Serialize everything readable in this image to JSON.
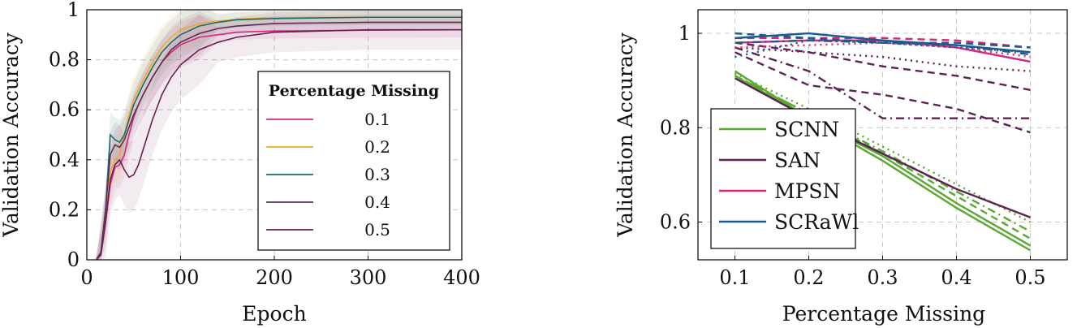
{
  "chart_data": [
    {
      "type": "line",
      "xlabel": "Epoch",
      "ylabel": "Validation Accuracy",
      "xlim": [
        0,
        400
      ],
      "ylim": [
        0,
        1
      ],
      "xticks": [
        "0",
        "100",
        "200",
        "300",
        "400"
      ],
      "yticks": [
        "0",
        "0.2",
        "0.4",
        "0.6",
        "0.8",
        "1"
      ],
      "grid": true,
      "legend_position": "bottom-right",
      "legend_title": "Percentage Missing",
      "series": [
        {
          "name": "0.1",
          "color": "#d6287a",
          "shaded_band": true,
          "points": [
            [
              10,
              0
            ],
            [
              15,
              0.03
            ],
            [
              20,
              0.15
            ],
            [
              25,
              0.3
            ],
            [
              30,
              0.37
            ],
            [
              35,
              0.38
            ],
            [
              40,
              0.42
            ],
            [
              45,
              0.5
            ],
            [
              50,
              0.57
            ],
            [
              55,
              0.62
            ],
            [
              60,
              0.66
            ],
            [
              70,
              0.73
            ],
            [
              80,
              0.79
            ],
            [
              90,
              0.83
            ],
            [
              100,
              0.86
            ],
            [
              110,
              0.875
            ],
            [
              120,
              0.89
            ],
            [
              140,
              0.9
            ],
            [
              160,
              0.91
            ],
            [
              200,
              0.915
            ],
            [
              300,
              0.918
            ],
            [
              400,
              0.92
            ]
          ]
        },
        {
          "name": "0.2",
          "color": "#f0a830",
          "shaded_band": true,
          "points": [
            [
              10,
              0
            ],
            [
              15,
              0.03
            ],
            [
              20,
              0.15
            ],
            [
              25,
              0.35
            ],
            [
              30,
              0.4
            ],
            [
              35,
              0.42
            ],
            [
              40,
              0.5
            ],
            [
              45,
              0.58
            ],
            [
              50,
              0.64
            ],
            [
              60,
              0.72
            ],
            [
              70,
              0.79
            ],
            [
              80,
              0.85
            ],
            [
              90,
              0.89
            ],
            [
              100,
              0.92
            ],
            [
              120,
              0.945
            ],
            [
              140,
              0.955
            ],
            [
              160,
              0.962
            ],
            [
              200,
              0.968
            ],
            [
              300,
              0.97
            ],
            [
              400,
              0.97
            ]
          ]
        },
        {
          "name": "0.3",
          "color": "#1a6e66",
          "shaded_band": true,
          "points": [
            [
              10,
              0
            ],
            [
              15,
              0.03
            ],
            [
              20,
              0.2
            ],
            [
              25,
              0.5
            ],
            [
              30,
              0.48
            ],
            [
              35,
              0.47
            ],
            [
              40,
              0.5
            ],
            [
              45,
              0.56
            ],
            [
              50,
              0.62
            ],
            [
              60,
              0.7
            ],
            [
              70,
              0.77
            ],
            [
              80,
              0.83
            ],
            [
              90,
              0.87
            ],
            [
              100,
              0.9
            ],
            [
              120,
              0.935
            ],
            [
              140,
              0.95
            ],
            [
              160,
              0.96
            ],
            [
              200,
              0.965
            ],
            [
              300,
              0.97
            ],
            [
              400,
              0.97
            ]
          ]
        },
        {
          "name": "0.4",
          "color": "#5a2d5f",
          "shaded_band": true,
          "points": [
            [
              10,
              0
            ],
            [
              15,
              0.03
            ],
            [
              20,
              0.2
            ],
            [
              25,
              0.42
            ],
            [
              30,
              0.46
            ],
            [
              35,
              0.45
            ],
            [
              40,
              0.48
            ],
            [
              45,
              0.53
            ],
            [
              50,
              0.58
            ],
            [
              60,
              0.66
            ],
            [
              70,
              0.73
            ],
            [
              80,
              0.79
            ],
            [
              90,
              0.84
            ],
            [
              100,
              0.87
            ],
            [
              120,
              0.905
            ],
            [
              140,
              0.925
            ],
            [
              160,
              0.935
            ],
            [
              200,
              0.945
            ],
            [
              300,
              0.95
            ],
            [
              400,
              0.95
            ]
          ]
        },
        {
          "name": "0.5",
          "color": "#6a1f52",
          "shaded_band": true,
          "points": [
            [
              10,
              0
            ],
            [
              15,
              0.02
            ],
            [
              20,
              0.15
            ],
            [
              25,
              0.32
            ],
            [
              30,
              0.38
            ],
            [
              35,
              0.4
            ],
            [
              40,
              0.36
            ],
            [
              45,
              0.33
            ],
            [
              50,
              0.34
            ],
            [
              55,
              0.38
            ],
            [
              60,
              0.44
            ],
            [
              70,
              0.56
            ],
            [
              80,
              0.66
            ],
            [
              90,
              0.73
            ],
            [
              100,
              0.78
            ],
            [
              110,
              0.81
            ],
            [
              120,
              0.84
            ],
            [
              140,
              0.87
            ],
            [
              160,
              0.89
            ],
            [
              200,
              0.91
            ],
            [
              300,
              0.92
            ],
            [
              400,
              0.92
            ]
          ]
        }
      ]
    },
    {
      "type": "line",
      "xlabel": "Percentage Missing",
      "ylabel": "Validation Accuracy",
      "xlim": [
        0.05,
        0.55
      ],
      "ylim": [
        0.52,
        1.05
      ],
      "xticks": [
        "0.1",
        "0.2",
        "0.3",
        "0.4",
        "0.5"
      ],
      "yticks": [
        "0.6",
        "0.8",
        "1"
      ],
      "grid": true,
      "legend_position": "bottom-left",
      "legend": [
        {
          "name": "SCNN",
          "color": "#5aa832"
        },
        {
          "name": "SAN",
          "color": "#5a2352"
        },
        {
          "name": "MPSN",
          "color": "#d6287a"
        },
        {
          "name": "SCRaWl",
          "color": "#1b5a8e"
        }
      ],
      "series": [
        {
          "model": "SCNN",
          "style": "solid",
          "color": "#5aa832",
          "x": [
            0.1,
            0.2,
            0.3,
            0.4,
            0.5
          ],
          "y": [
            0.92,
            0.82,
            0.73,
            0.63,
            0.54
          ]
        },
        {
          "model": "SCNN",
          "style": "solid",
          "color": "#5aa832",
          "x": [
            0.1,
            0.2,
            0.3,
            0.4,
            0.5
          ],
          "y": [
            0.91,
            0.82,
            0.74,
            0.64,
            0.55
          ]
        },
        {
          "model": "SCNN",
          "style": "dashed",
          "color": "#5aa832",
          "x": [
            0.1,
            0.2,
            0.3,
            0.4,
            0.5
          ],
          "y": [
            0.91,
            0.83,
            0.745,
            0.655,
            0.565
          ]
        },
        {
          "model": "SCNN",
          "style": "dashdot",
          "color": "#5aa832",
          "x": [
            0.1,
            0.2,
            0.3,
            0.4,
            0.5
          ],
          "y": [
            0.91,
            0.83,
            0.75,
            0.665,
            0.58
          ]
        },
        {
          "model": "SCNN",
          "style": "dotted",
          "color": "#5aa832",
          "x": [
            0.1,
            0.2,
            0.3,
            0.4,
            0.5
          ],
          "y": [
            0.915,
            0.84,
            0.76,
            0.68,
            0.6
          ]
        },
        {
          "model": "SAN",
          "style": "solid",
          "color": "#5a2352",
          "x": [
            0.1,
            0.2,
            0.3,
            0.4,
            0.5
          ],
          "y": [
            0.905,
            0.82,
            0.745,
            0.67,
            0.61
          ]
        },
        {
          "model": "SAN",
          "style": "dashed",
          "color": "#5a2352",
          "x": [
            0.1,
            0.2,
            0.3,
            0.4,
            0.5
          ],
          "y": [
            0.98,
            0.96,
            0.93,
            0.91,
            0.88
          ]
        },
        {
          "model": "SAN",
          "style": "dashdot",
          "color": "#5a2352",
          "x": [
            0.1,
            0.2,
            0.3,
            0.4,
            0.5
          ],
          "y": [
            0.97,
            0.92,
            0.82,
            0.82,
            0.82
          ]
        },
        {
          "model": "SAN",
          "style": "dotted",
          "color": "#5a2352",
          "x": [
            0.1,
            0.2,
            0.3,
            0.4,
            0.5
          ],
          "y": [
            0.97,
            0.96,
            0.95,
            0.93,
            0.92
          ]
        },
        {
          "model": "SAN",
          "style": "dashed",
          "color": "#5a2352",
          "x": [
            0.1,
            0.2,
            0.3,
            0.4,
            0.5
          ],
          "y": [
            0.96,
            0.89,
            0.87,
            0.84,
            0.79
          ]
        },
        {
          "model": "MPSN",
          "style": "solid",
          "color": "#d6287a",
          "x": [
            0.1,
            0.2,
            0.3,
            0.4,
            0.5
          ],
          "y": [
            0.98,
            0.985,
            0.985,
            0.97,
            0.94
          ]
        },
        {
          "model": "MPSN",
          "style": "dashed",
          "color": "#d6287a",
          "x": [
            0.1,
            0.2,
            0.3,
            0.4,
            0.5
          ],
          "y": [
            0.99,
            0.99,
            0.99,
            0.985,
            0.97
          ]
        },
        {
          "model": "MPSN",
          "style": "dotted",
          "color": "#d6287a",
          "x": [
            0.1,
            0.2,
            0.3,
            0.4,
            0.5
          ],
          "y": [
            0.97,
            0.975,
            0.98,
            0.97,
            0.95
          ]
        },
        {
          "model": "SCRaWl",
          "style": "solid",
          "color": "#1b5a8e",
          "x": [
            0.1,
            0.2,
            0.3,
            0.4,
            0.5
          ],
          "y": [
            0.99,
            1.0,
            0.985,
            0.975,
            0.96
          ]
        },
        {
          "model": "SCRaWl",
          "style": "dashed",
          "color": "#1b5a8e",
          "x": [
            0.1,
            0.2,
            0.3,
            0.4,
            0.5
          ],
          "y": [
            1.0,
            0.99,
            0.98,
            0.98,
            0.97
          ]
        },
        {
          "model": "SCRaWl",
          "style": "dashdot",
          "color": "#1b5a8e",
          "x": [
            0.1,
            0.2,
            0.3,
            0.4,
            0.5
          ],
          "y": [
            0.98,
            0.985,
            0.98,
            0.975,
            0.955
          ]
        },
        {
          "model": "SCRaWl",
          "style": "dotted",
          "color": "#1b5a8e",
          "x": [
            0.1,
            0.2,
            0.3,
            0.4,
            0.5
          ],
          "y": [
            0.95,
            0.985,
            0.98,
            0.97,
            0.96
          ]
        }
      ]
    }
  ]
}
